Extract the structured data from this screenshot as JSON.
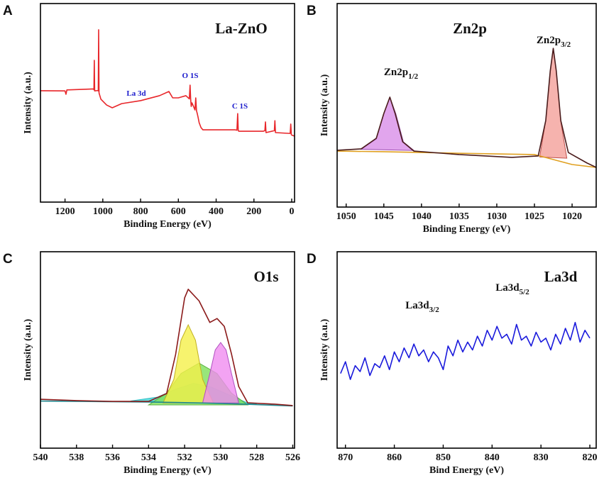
{
  "chart_data": [
    {
      "type": "line",
      "panel": "A",
      "title": "La-ZnO",
      "xlabel": "Binding Energy (eV)",
      "ylabel": "Intensity (a.u.)",
      "xlim": [
        1330,
        -15
      ],
      "xticks": [
        1200,
        1000,
        800,
        600,
        400,
        200,
        0
      ],
      "ylim": [
        0,
        100
      ],
      "annotation_color": "#1a1acc",
      "annotations": [
        {
          "text": "La 3d"
        },
        {
          "text": "O 1S"
        },
        {
          "text": "C 1S"
        }
      ],
      "series": [
        {
          "color": "#e8262a",
          "x": [
            1330,
            1200,
            1195,
            1190,
            1100,
            1050,
            1047,
            1045,
            1043,
            1026,
            1024,
            1022,
            1020,
            1010,
            980,
            950,
            900,
            800,
            700,
            650,
            630,
            600,
            560,
            542,
            538,
            535,
            532,
            528,
            512,
            508,
            504,
            500,
            496,
            490,
            480,
            470,
            300,
            290,
            286,
            283,
            280,
            150,
            142,
            139,
            136,
            92,
            89,
            86,
            12,
            8,
            5,
            2,
            -15
          ],
          "values": [
            56.1,
            56,
            54.3,
            56.5,
            56.8,
            57,
            56.6,
            71.4,
            56,
            56.2,
            56,
            86.8,
            55,
            51.8,
            48.9,
            47.5,
            49.6,
            51.1,
            53.6,
            55.7,
            52.5,
            52.5,
            53.6,
            52,
            58.9,
            52,
            48.2,
            50,
            46.4,
            52.5,
            46,
            44.6,
            42.9,
            40,
            37.5,
            36.4,
            36.4,
            36.2,
            44.6,
            36,
            35.7,
            35.7,
            36,
            40.4,
            35,
            36,
            41,
            35,
            34.6,
            34.6,
            39.3,
            33.9,
            33.2
          ]
        }
      ]
    },
    {
      "type": "line",
      "panel": "B",
      "title": "Zn2p",
      "xlabel": "Binding Energy (eV)",
      "ylabel": "Intensity (a.u.)",
      "xlim": [
        1051.2,
        1016.8
      ],
      "xticks": [
        1050,
        1045,
        1040,
        1035,
        1030,
        1025,
        1020
      ],
      "ylim": [
        0,
        100
      ],
      "annotation_color": "#111111",
      "annotations": [
        {
          "text": "Zn2p",
          "sub": "1/2"
        },
        {
          "text": "Zn2p",
          "sub": "3/2"
        }
      ],
      "series": [
        {
          "color": "#9a4cb0",
          "fill": "#d98ee8",
          "x": [
            1048,
            1046,
            1045,
            1044.2,
            1043.4,
            1042.4,
            1041
          ],
          "values": [
            28.4,
            33.5,
            45.8,
            54,
            45.8,
            32,
            27.8
          ]
        },
        {
          "color": "#c0504d",
          "fill": "#f4a09a",
          "x": [
            1024.3,
            1023.5,
            1022.9,
            1022.5,
            1022.1,
            1021.5,
            1020.7
          ],
          "values": [
            24.6,
            42.5,
            66.9,
            78,
            66.9,
            42,
            24
          ]
        },
        {
          "color": "#e0a020",
          "x": [
            1051.2,
            1045,
            1040,
            1030,
            1025,
            1020,
            1016.8
          ],
          "values": [
            27.5,
            27.2,
            26.8,
            26.1,
            25.8,
            20.9,
            19.5
          ]
        },
        {
          "color": "#4a1c1c",
          "x": [
            1051.2,
            1048,
            1046,
            1045,
            1044.2,
            1043.5,
            1042.5,
            1041,
            1035,
            1028,
            1024.5,
            1023.5,
            1022.9,
            1022.5,
            1022.1,
            1021.5,
            1020.5,
            1018,
            1016.8
          ],
          "values": [
            27.9,
            28.6,
            33.8,
            46,
            54,
            46,
            32.1,
            27.5,
            25.8,
            24.4,
            25.1,
            42.5,
            66.9,
            78,
            66.9,
            42.5,
            26.8,
            21.6,
            19.5
          ]
        }
      ]
    },
    {
      "type": "line",
      "panel": "C",
      "title": "O1s",
      "xlabel": "Binding Energy (eV)",
      "ylabel": "Intensity (a.u.)",
      "xlim": [
        540,
        525.9
      ],
      "xticks": [
        540,
        538,
        536,
        534,
        532,
        530,
        528,
        526
      ],
      "ylim": [
        0,
        100
      ],
      "annotation_color": "#111111",
      "annotations": [],
      "series": [
        {
          "color": "#30b8c0",
          "fill": "#40d8d8",
          "x": [
            535,
            533.5,
            532.5,
            531.5,
            530.5,
            529.5,
            528.5,
            528
          ],
          "values": [
            24,
            26,
            30,
            33,
            31,
            27,
            23,
            22.5
          ]
        },
        {
          "color": "#5cb040",
          "fill": "#7ee05a",
          "x": [
            534,
            533,
            532.2,
            531.2,
            530.2,
            529.4,
            528.5
          ],
          "values": [
            22,
            28,
            38,
            43.3,
            38,
            28,
            22
          ]
        },
        {
          "color": "#c0b020",
          "fill": "#f5f04a",
          "x": [
            533.2,
            532.6,
            532.2,
            531.8,
            531.4,
            531,
            530.4
          ],
          "values": [
            23,
            35,
            55,
            62.8,
            55,
            35,
            23
          ]
        },
        {
          "color": "#b050c0",
          "fill": "#f08cf0",
          "x": [
            531,
            530.6,
            530.3,
            530,
            529.7,
            529.4,
            529
          ],
          "values": [
            23,
            38,
            50,
            53.8,
            50,
            38,
            23
          ]
        },
        {
          "color": "#208890",
          "x": [
            540,
            534,
            531,
            529,
            526
          ],
          "values": [
            24,
            23.5,
            23,
            22.5,
            21.5
          ]
        },
        {
          "color": "#8b1a1a",
          "x": [
            540,
            538,
            536,
            534,
            533,
            532.5,
            532,
            531.8,
            531.2,
            530.6,
            530.2,
            529.8,
            529.4,
            529,
            528.5,
            527,
            526
          ],
          "values": [
            24.9,
            24.2,
            23.8,
            23.8,
            27.8,
            47.7,
            76.5,
            80.9,
            75,
            64,
            66,
            62,
            48,
            31.4,
            23.1,
            22.4,
            21.7
          ]
        }
      ]
    },
    {
      "type": "line",
      "panel": "D",
      "title": "La3d",
      "xlabel": "Bind Energy (eV)",
      "ylabel": "Intensity (a.u.)",
      "xlim": [
        871.7,
        818.7
      ],
      "xticks": [
        870,
        860,
        850,
        840,
        830,
        820
      ],
      "ylim": [
        0,
        100
      ],
      "annotation_color": "#111111",
      "annotations": [
        {
          "text": "La3d",
          "sub": "3/2"
        },
        {
          "text": "La3d",
          "sub": "5/2"
        }
      ],
      "series": [
        {
          "color": "#1a1adc",
          "x": [
            871,
            870,
            869,
            868,
            867,
            866,
            865,
            864,
            863,
            862,
            861,
            860,
            859,
            858,
            857,
            856,
            855,
            854,
            853,
            852,
            851,
            850,
            849,
            848,
            847,
            846,
            845,
            844,
            843,
            842,
            841,
            840,
            839,
            838,
            837,
            836,
            835,
            834,
            833,
            832,
            831,
            830,
            829,
            828,
            827,
            826,
            825,
            824,
            823,
            822,
            821,
            820
          ],
          "values": [
            38,
            44,
            35,
            42,
            39,
            46,
            37,
            43,
            41,
            47,
            40,
            49,
            44,
            51,
            46,
            53,
            47,
            50,
            44,
            49,
            46,
            40,
            52,
            47,
            55,
            49,
            54,
            50,
            57,
            52,
            60,
            55,
            62,
            56,
            58,
            53,
            63,
            55,
            57,
            52,
            59,
            54,
            56,
            50,
            58,
            53,
            61,
            55,
            64,
            54,
            60,
            56
          ]
        }
      ]
    }
  ]
}
